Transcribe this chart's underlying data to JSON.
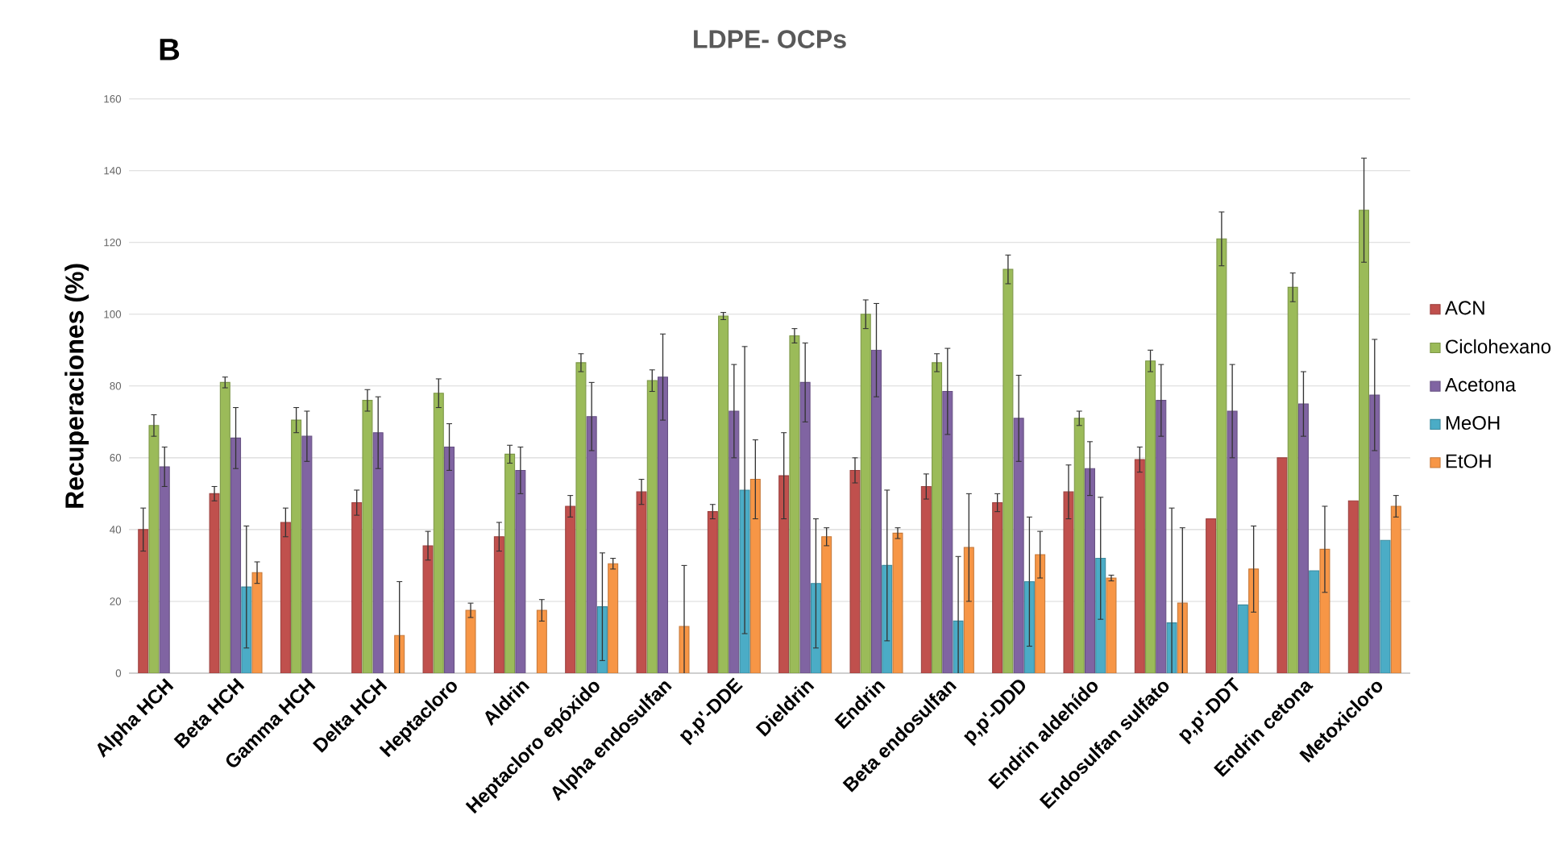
{
  "chart_data": {
    "type": "bar",
    "title": "LDPE- OCPs",
    "ylabel": "Recuperaciones (%)",
    "annotations": [
      "B"
    ],
    "categories": [
      "Alpha HCH",
      "Beta HCH",
      "Gamma HCH",
      "Delta HCH",
      "Heptacloro",
      "Aldrin",
      "Heptacloro epóxido",
      "Alpha endosulfan",
      "p,p'-DDE",
      "Dieldrin",
      "Endrin",
      "Beta endosulfan",
      "p,p'-DDD",
      "Endrin aldehído",
      "Endosulfan sulfato",
      "p,p'-DDT",
      "Endrin cetona",
      "Metoxicloro"
    ],
    "series": [
      {
        "name": "ACN",
        "color": "#c0504d",
        "values": [
          40,
          50,
          42,
          47.5,
          35.5,
          38,
          46.5,
          50.5,
          45,
          55,
          56.5,
          52,
          47.5,
          50.5,
          59.5,
          43,
          60,
          48
        ],
        "errors": [
          6,
          2,
          4,
          3.5,
          4,
          4,
          3,
          3.5,
          2,
          12,
          3.5,
          3.5,
          2.5,
          7.5,
          3.5,
          null,
          null,
          null
        ]
      },
      {
        "name": "Ciclohexano",
        "color": "#9bbb59",
        "values": [
          69,
          81,
          70.5,
          76,
          78,
          61,
          86.5,
          81.5,
          99.5,
          94,
          100,
          86.5,
          112.5,
          71,
          87,
          121,
          107.5,
          129
        ],
        "errors": [
          3,
          1.5,
          3.5,
          3,
          4,
          2.5,
          2.5,
          3,
          1,
          2,
          4,
          2.5,
          4,
          2,
          3,
          7.5,
          4,
          14.5
        ]
      },
      {
        "name": "Acetona",
        "color": "#8064a2",
        "values": [
          57.5,
          65.5,
          66,
          67,
          63,
          56.5,
          71.5,
          82.5,
          73,
          81,
          90,
          78.5,
          71,
          57,
          76,
          73,
          75,
          77.5
        ],
        "errors": [
          5.5,
          8.5,
          7,
          10,
          6.5,
          6.5,
          9.5,
          12,
          13,
          11,
          13,
          12,
          12,
          7.5,
          10,
          13,
          9,
          15.5
        ]
      },
      {
        "name": "MeOH",
        "color": "#4bacc6",
        "values": [
          null,
          24,
          null,
          null,
          null,
          null,
          18.5,
          null,
          51,
          25,
          30,
          14.5,
          25.5,
          32,
          14,
          19,
          28.5,
          37
        ],
        "errors": [
          null,
          17,
          null,
          null,
          null,
          null,
          15,
          null,
          40,
          18,
          21,
          18,
          18,
          17,
          32,
          null,
          null,
          null
        ]
      },
      {
        "name": "EtOH",
        "color": "#f79646",
        "values": [
          null,
          28,
          null,
          10.5,
          17.5,
          17.5,
          30.5,
          13,
          54,
          38,
          39,
          35,
          33,
          26.5,
          19.5,
          29,
          34.5,
          46.5
        ],
        "errors": [
          null,
          3,
          null,
          15,
          2,
          3,
          1.5,
          17,
          11,
          2.5,
          1.5,
          15,
          6.5,
          0.8,
          21,
          12,
          12,
          3
        ]
      }
    ],
    "ylim": [
      0,
      160
    ],
    "yticks": [
      0,
      20,
      40,
      60,
      80,
      100,
      120,
      140,
      160
    ],
    "grid": "y",
    "legend": "right"
  }
}
